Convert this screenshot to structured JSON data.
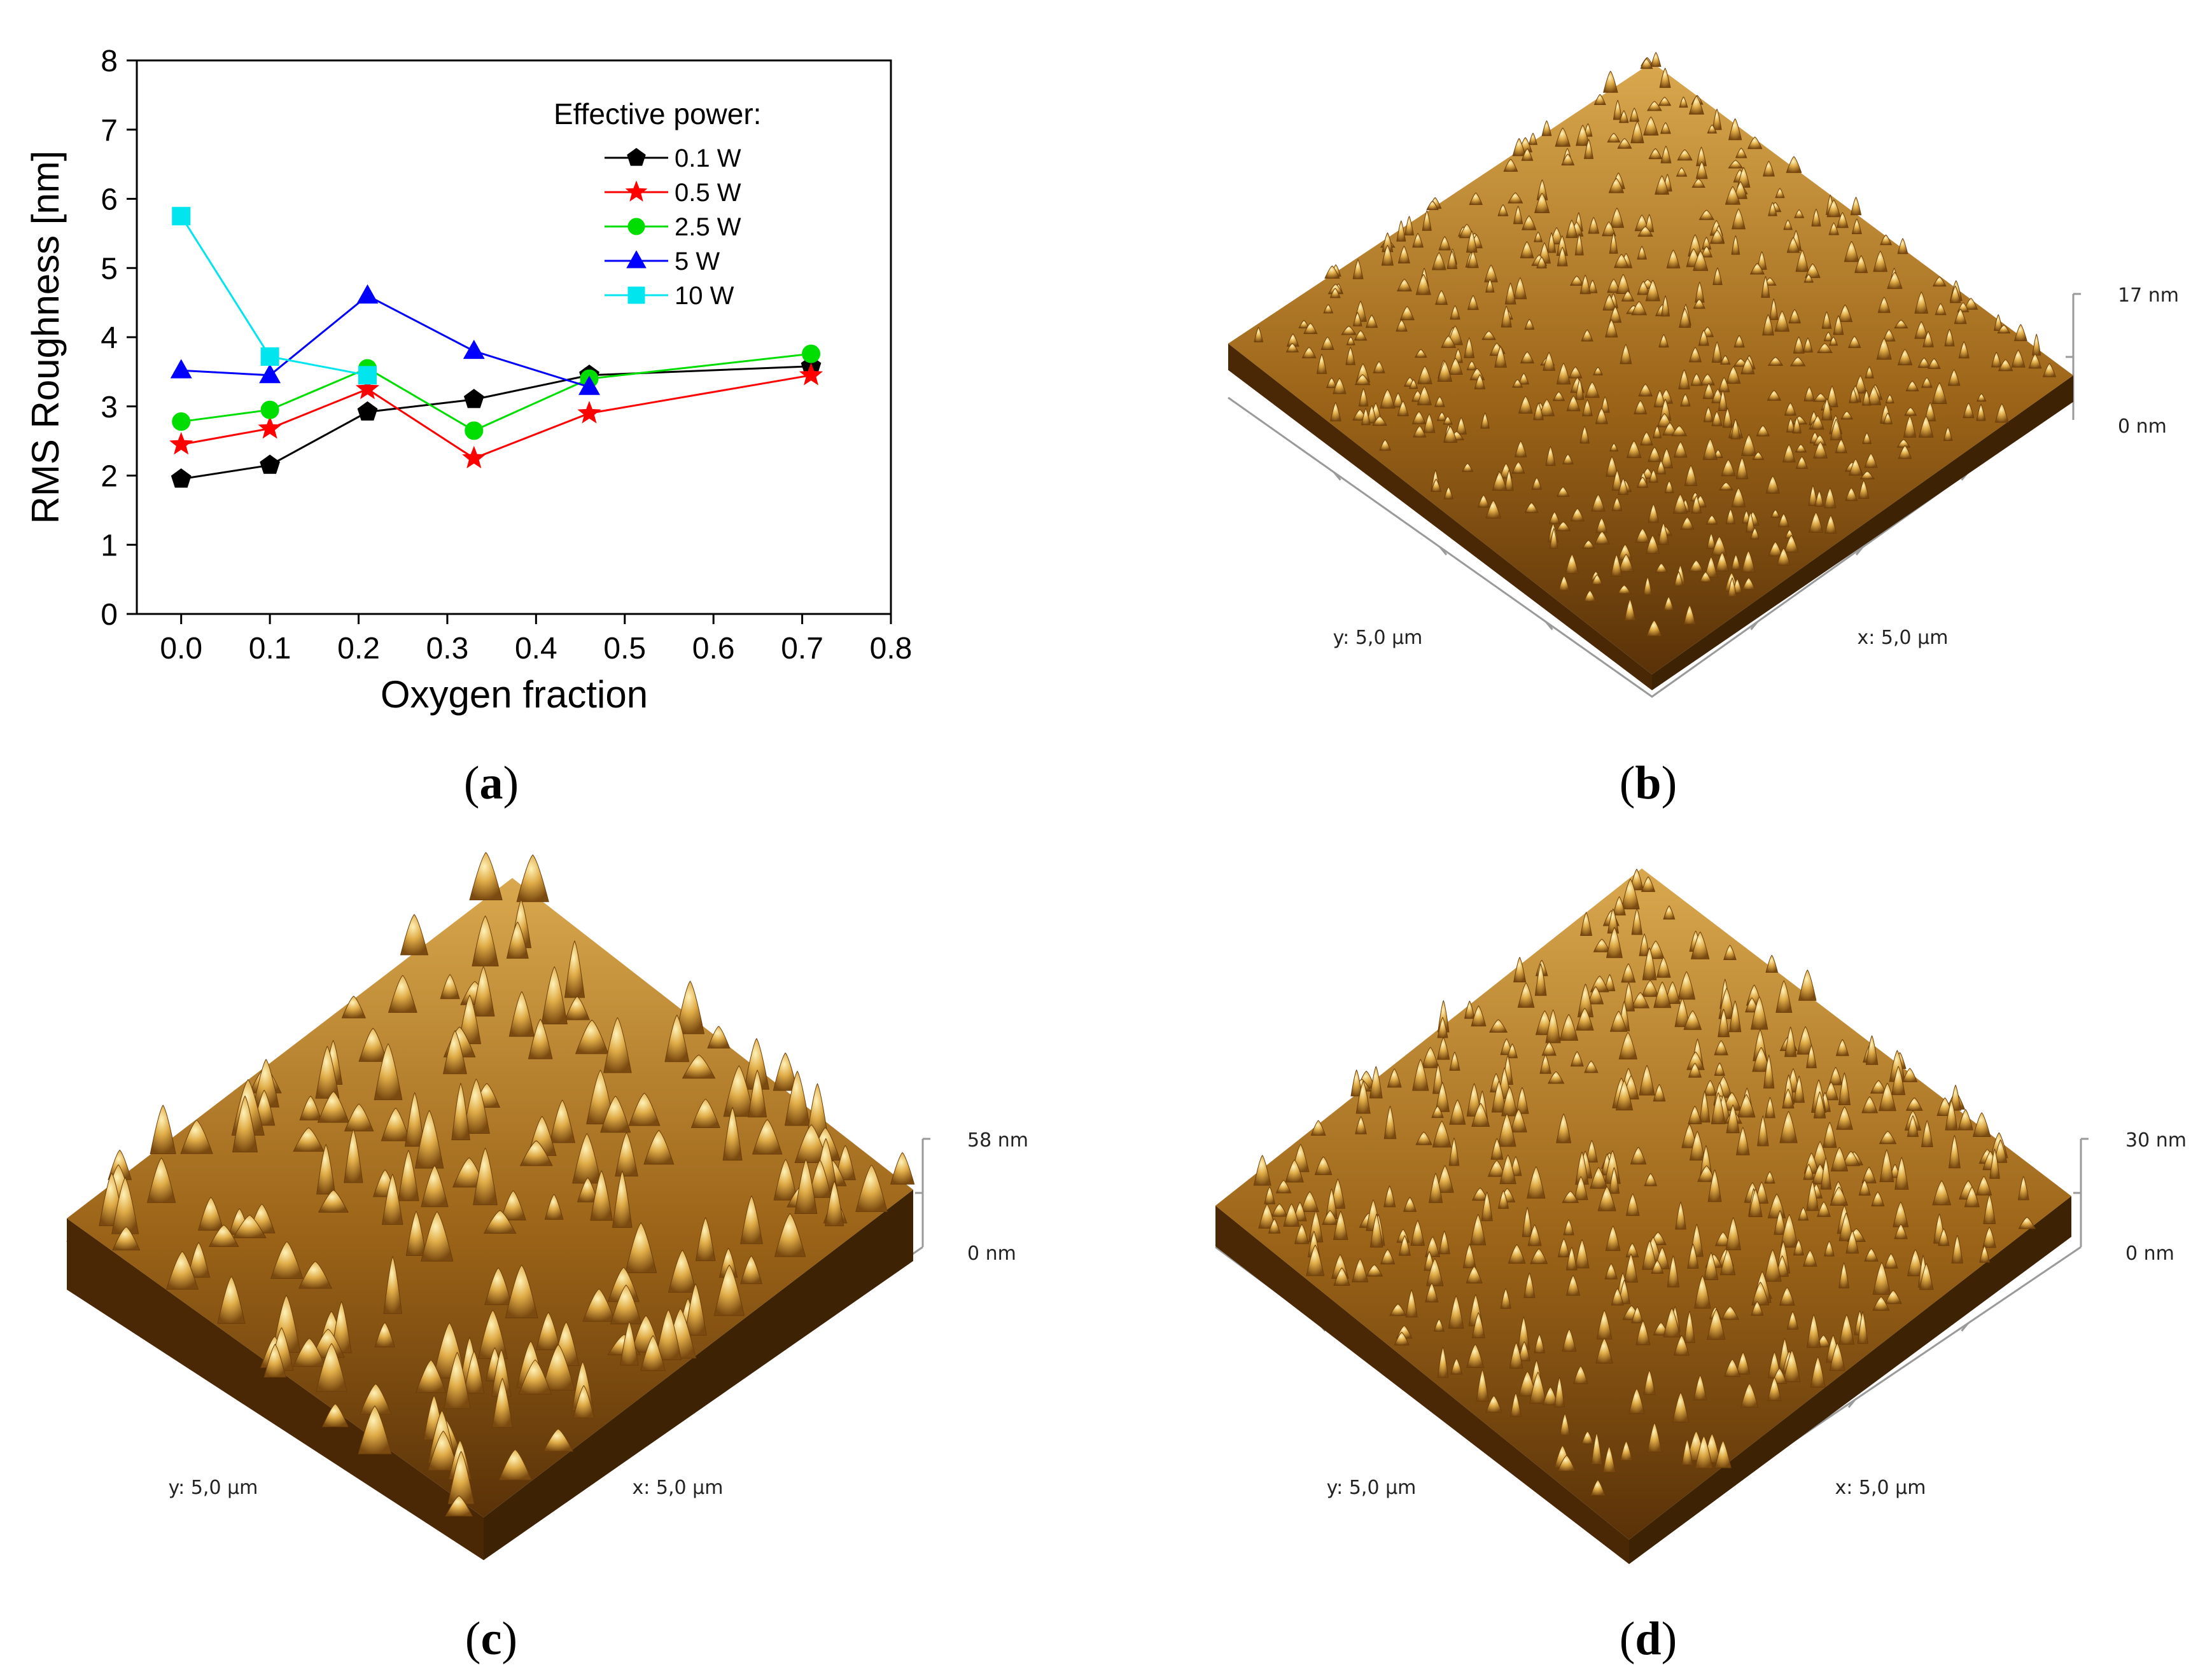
{
  "chart_data": {
    "type": "line",
    "title": "",
    "xlabel": "Oxygen fraction",
    "ylabel": "RMS Roughness [nm]",
    "xlim": [
      -0.05,
      0.8
    ],
    "ylim": [
      0,
      8
    ],
    "xticks": [
      "0.0",
      "0.1",
      "0.2",
      "0.3",
      "0.4",
      "0.5",
      "0.6",
      "0.7",
      "0.8"
    ],
    "yticks": [
      "0",
      "1",
      "2",
      "3",
      "4",
      "5",
      "6",
      "7",
      "8"
    ],
    "legend_title": "Effective power:",
    "legend_position": "top-right",
    "series": [
      {
        "name": "0.1 W",
        "color": "#000000",
        "marker": "pentagon",
        "x": [
          0.0,
          0.1,
          0.21,
          0.33,
          0.46,
          0.71
        ],
        "y": [
          1.95,
          2.15,
          2.92,
          3.1,
          3.45,
          3.58
        ]
      },
      {
        "name": "0.5 W",
        "color": "#ff0000",
        "marker": "star",
        "x": [
          0.0,
          0.1,
          0.21,
          0.33,
          0.46,
          0.71
        ],
        "y": [
          2.45,
          2.68,
          3.25,
          2.25,
          2.9,
          3.45
        ]
      },
      {
        "name": "2.5 W",
        "color": "#00dd00",
        "marker": "circle",
        "x": [
          0.0,
          0.1,
          0.21,
          0.33,
          0.46,
          0.71
        ],
        "y": [
          2.78,
          2.95,
          3.55,
          2.65,
          3.4,
          3.76
        ]
      },
      {
        "name": "5 W",
        "color": "#0000ff",
        "marker": "triangle",
        "x": [
          0.0,
          0.1,
          0.21,
          0.33,
          0.46
        ],
        "y": [
          3.52,
          3.45,
          4.6,
          3.8,
          3.28
        ]
      },
      {
        "name": "10 W",
        "color": "#00e5ee",
        "marker": "square",
        "x": [
          0.0,
          0.1,
          0.21
        ],
        "y": [
          5.75,
          3.72,
          3.45
        ]
      }
    ]
  },
  "afm_panels": [
    {
      "id": "b",
      "z_label": "17 nm",
      "zero_label": "0 nm",
      "x_label": "x: 5,0 µm",
      "y_label": "y: 5,0 µm"
    },
    {
      "id": "c",
      "z_label": "58 nm",
      "zero_label": "0 nm",
      "x_label": "x: 5,0 µm",
      "y_label": "y: 5,0 µm"
    },
    {
      "id": "d",
      "z_label": "30 nm",
      "zero_label": "0 nm",
      "x_label": "x: 5,0 µm",
      "y_label": "y: 5,0 µm"
    }
  ],
  "captions": {
    "a": "a",
    "b": "b",
    "c": "c",
    "d": "d"
  },
  "colors": {
    "afm_dark": "#5a3005",
    "afm_mid": "#a86a18",
    "afm_light": "#f7dc8a"
  }
}
